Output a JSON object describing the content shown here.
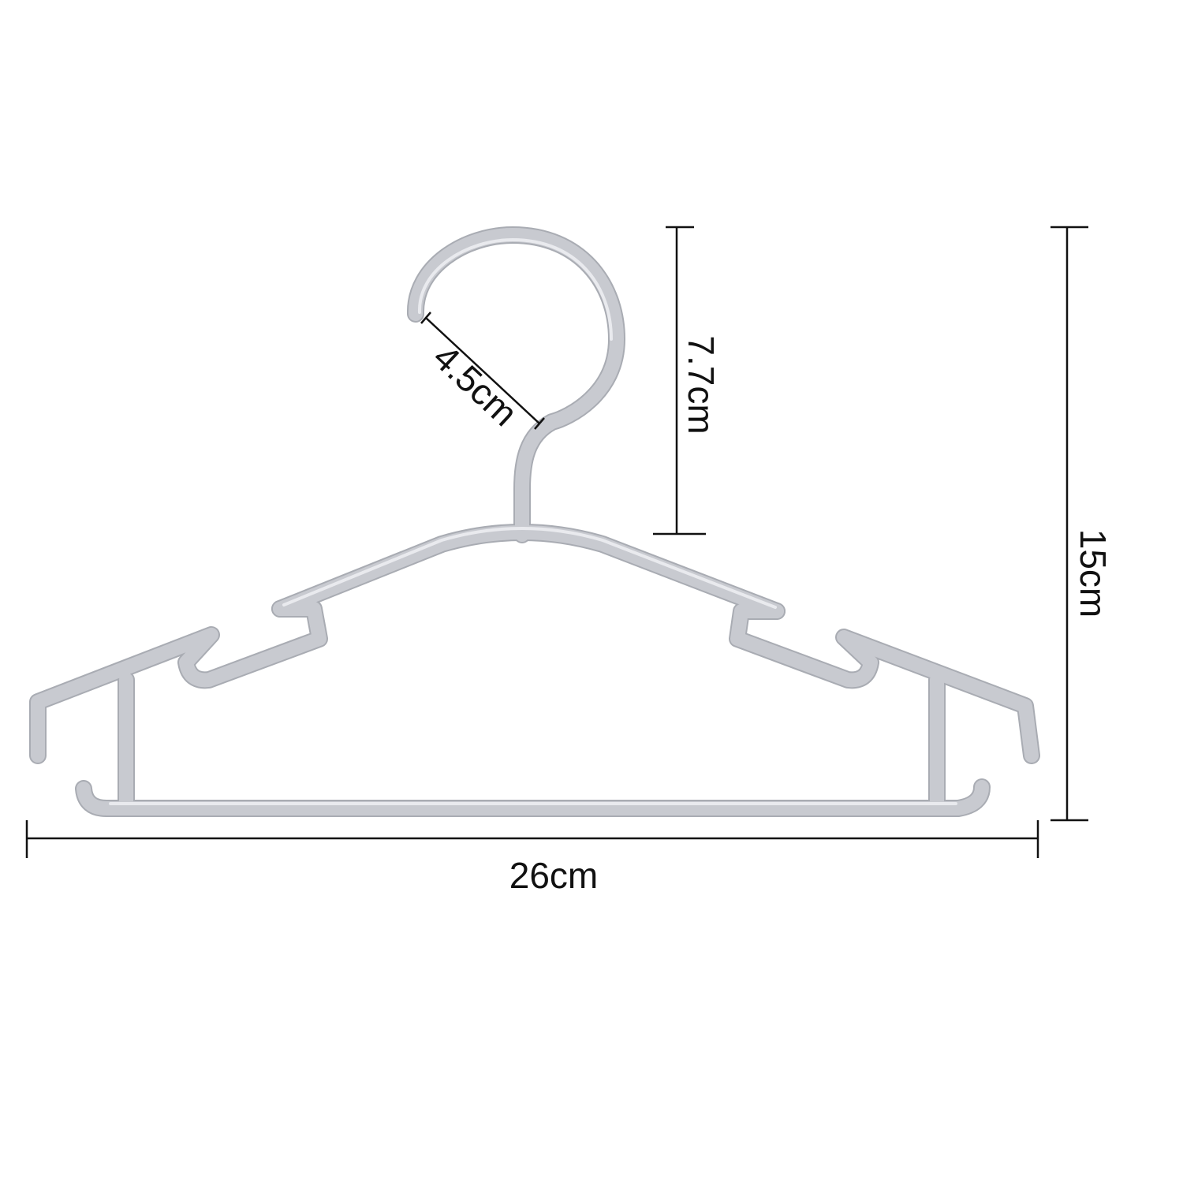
{
  "product": {
    "name_icon": "clothes-hanger-icon",
    "color": "#c8cad0",
    "shadow_color": "#a9acb3"
  },
  "dimensions": {
    "hook_opening": {
      "label": "4.5cm",
      "value": 4.5,
      "unit": "cm"
    },
    "hook_height": {
      "label": "7.7cm",
      "value": 7.7,
      "unit": "cm"
    },
    "total_height": {
      "label": "15cm",
      "value": 15,
      "unit": "cm"
    },
    "width": {
      "label": "26cm",
      "value": 26,
      "unit": "cm"
    }
  },
  "line_color": "#111111"
}
